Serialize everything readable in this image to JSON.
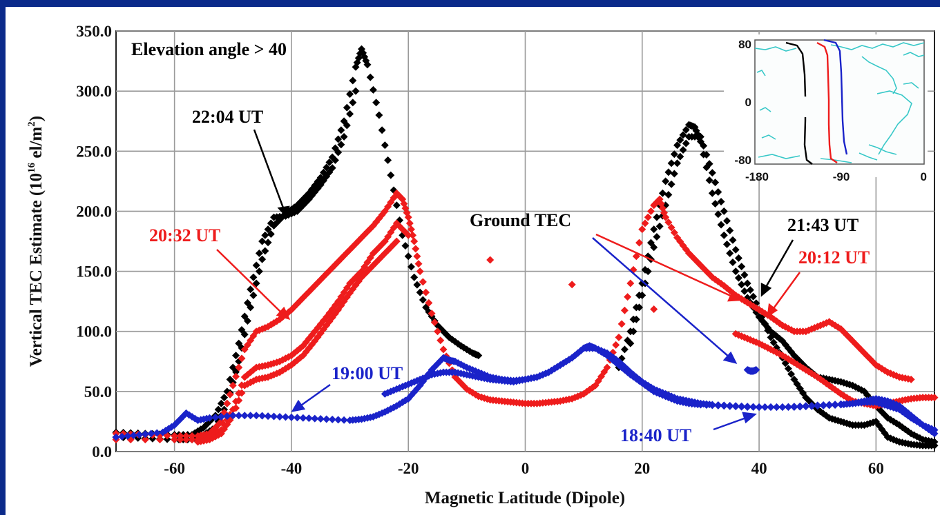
{
  "chart_data": {
    "type": "scatter",
    "xlabel": "Magnetic Latitude (Dipole)",
    "ylabel": "Vertical TEC Estimate (10",
    "ylabel_sup": "16",
    "ylabel_unit": " el/m",
    "ylabel_sup2": "2",
    "ylabel_close": ")",
    "xlim": [
      -70,
      70
    ],
    "ylim": [
      0,
      350
    ],
    "xticks": [
      -60,
      -40,
      -20,
      0,
      20,
      40,
      60
    ],
    "xtick_labels": [
      "-60",
      "-40",
      "-20",
      "0",
      "20",
      "40",
      "60"
    ],
    "yticks": [
      0,
      50,
      100,
      150,
      200,
      250,
      300,
      350
    ],
    "ytick_labels": [
      "0.0",
      "50.0",
      "100.0",
      "150.0",
      "200.0",
      "250.0",
      "300.0",
      "350.0"
    ],
    "grid": true,
    "colors": {
      "black": "#000000",
      "red": "#ee1c1c",
      "blue": "#1a23c9"
    },
    "annotations": [
      {
        "text": "Elevation angle > 40",
        "color": "#000000"
      },
      {
        "text": "22:04 UT",
        "color": "#000000"
      },
      {
        "text": "20:32 UT",
        "color": "#ee1c1c"
      },
      {
        "text": "19:00 UT",
        "color": "#1a23c9"
      },
      {
        "text": "Ground TEC",
        "color": "#000000"
      },
      {
        "text": "21:43 UT",
        "color": "#000000"
      },
      {
        "text": "20:12 UT",
        "color": "#ee1c1c"
      },
      {
        "text": "18:40 UT",
        "color": "#1a23c9"
      }
    ],
    "series": [
      {
        "color": "#000000",
        "x": [
          -70,
          -65,
          -60,
          -57,
          -55,
          -53,
          -51,
          -49,
          -47,
          -45,
          -43,
          -41,
          -39,
          -37,
          -35,
          -33,
          -31,
          -29,
          -28,
          -27,
          -25,
          -23,
          -21,
          -19,
          -17,
          -15,
          -13,
          -11,
          -9,
          -8
        ],
        "y": [
          12,
          11,
          10,
          10,
          14,
          20,
          40,
          75,
          120,
          160,
          188,
          198,
          205,
          215,
          228,
          245,
          275,
          320,
          335,
          322,
          280,
          230,
          180,
          145,
          120,
          105,
          95,
          88,
          82,
          80
        ]
      },
      {
        "color": "#000000",
        "x": [
          -70,
          -65,
          -60,
          -57,
          -55,
          -53,
          -51,
          -49,
          -47,
          -45,
          -43,
          -41,
          -39,
          -37,
          -35,
          -33,
          -31,
          -29
        ],
        "y": [
          16,
          15,
          14,
          14,
          20,
          30,
          50,
          90,
          135,
          175,
          195,
          196,
          200,
          210,
          222,
          236,
          262,
          300
        ]
      },
      {
        "color": "#000000",
        "x": [
          16,
          18,
          20,
          22,
          24,
          26,
          28,
          29,
          30,
          32,
          34,
          36,
          38,
          40,
          42,
          44,
          46,
          48,
          50,
          52,
          54,
          56,
          58,
          60,
          62,
          64,
          66,
          68,
          70
        ],
        "y": [
          70,
          100,
          140,
          185,
          225,
          255,
          272,
          270,
          258,
          215,
          180,
          150,
          128,
          112,
          100,
          92,
          80,
          70,
          62,
          60,
          58,
          55,
          50,
          38,
          28,
          22,
          15,
          10,
          8
        ]
      },
      {
        "color": "#000000",
        "x": [
          18,
          20,
          22,
          24,
          26,
          28,
          30,
          32,
          34,
          36,
          38,
          40,
          42,
          44,
          46,
          48,
          50,
          52,
          54,
          56,
          58,
          60,
          62,
          64,
          66,
          68,
          70
        ],
        "y": [
          90,
          130,
          170,
          205,
          240,
          262,
          262,
          232,
          200,
          168,
          140,
          118,
          95,
          78,
          60,
          45,
          35,
          28,
          25,
          22,
          22,
          25,
          12,
          8,
          6,
          5,
          5
        ]
      },
      {
        "color": "#ee1c1c",
        "x": [
          -70,
          -65,
          -60,
          -56,
          -54,
          -52,
          -50,
          -48,
          -46,
          -44,
          -42,
          -40,
          -38,
          -36,
          -34,
          -32,
          -30,
          -28,
          -26,
          -24,
          -22,
          -21,
          -20,
          -19,
          -18,
          -16,
          -14,
          -12,
          -10,
          -8,
          -6,
          -4,
          -2,
          0,
          2,
          4,
          6,
          8,
          10,
          12,
          14,
          16,
          18,
          20,
          22,
          23,
          24,
          26,
          28,
          30,
          32,
          34,
          36,
          38,
          40,
          42,
          44,
          46,
          48,
          50,
          52,
          54,
          56,
          58,
          60,
          62,
          64,
          66
        ],
        "y": [
          15,
          14,
          13,
          13,
          15,
          25,
          55,
          85,
          100,
          104,
          110,
          118,
          128,
          138,
          148,
          158,
          168,
          178,
          188,
          200,
          215,
          210,
          195,
          175,
          150,
          115,
          85,
          62,
          52,
          46,
          43,
          42,
          41,
          40,
          40,
          41,
          42,
          44,
          48,
          55,
          70,
          95,
          140,
          185,
          205,
          210,
          195,
          178,
          165,
          155,
          145,
          138,
          130,
          124,
          118,
          112,
          105,
          100,
          100,
          104,
          108,
          102,
          92,
          82,
          72,
          66,
          62,
          60
        ]
      },
      {
        "color": "#ee1c1c",
        "x": [
          -70,
          -60,
          -56,
          -54,
          -52,
          -50,
          -48,
          -46,
          -44,
          -42,
          -40,
          -38,
          -36,
          -34,
          -32,
          -30,
          -28,
          -26,
          -24,
          -22,
          -20,
          36,
          38,
          40,
          42,
          44,
          46,
          48,
          50,
          52,
          54,
          56,
          58,
          60,
          62,
          64,
          66,
          68,
          70
        ],
        "y": [
          10,
          10,
          10,
          12,
          18,
          35,
          62,
          70,
          72,
          75,
          80,
          88,
          100,
          112,
          125,
          140,
          150,
          165,
          175,
          190,
          180,
          98,
          94,
          90,
          85,
          80,
          74,
          68,
          62,
          55,
          48,
          42,
          40,
          38,
          40,
          42,
          44,
          45,
          45
        ]
      },
      {
        "color": "#ee1c1c",
        "x": [
          -56,
          -54,
          -52,
          -50,
          -48,
          -46,
          -44,
          -42,
          -40,
          -38,
          -36,
          -34,
          -32,
          -30,
          -28,
          -26,
          -24,
          -22
        ],
        "y": [
          8,
          10,
          15,
          30,
          55,
          60,
          62,
          66,
          72,
          80,
          92,
          105,
          118,
          132,
          145,
          155,
          165,
          175
        ]
      },
      {
        "color": "#1a23c9",
        "x": [
          -70,
          -66,
          -62,
          -60,
          -58,
          -56,
          -54,
          -50,
          -46,
          -42,
          -38,
          -34,
          -30,
          -28,
          -26,
          -24,
          -22,
          -20,
          -18,
          -16,
          -14,
          -13,
          -12,
          -10,
          -8,
          -6,
          -4,
          -2,
          0,
          2,
          4,
          6,
          8,
          10,
          11,
          12,
          14,
          16,
          18,
          20,
          22,
          24,
          26,
          28,
          30,
          34,
          38,
          42,
          46,
          50,
          54,
          56,
          58,
          60,
          62,
          64,
          66,
          68,
          70
        ],
        "y": [
          12,
          14,
          16,
          22,
          32,
          26,
          28,
          30,
          30,
          29,
          28,
          27,
          26,
          27,
          29,
          33,
          38,
          44,
          55,
          68,
          78,
          76,
          75,
          70,
          66,
          62,
          60,
          59,
          60,
          62,
          66,
          72,
          78,
          86,
          88,
          86,
          80,
          72,
          64,
          57,
          50,
          46,
          42,
          40,
          39,
          38,
          37,
          37,
          37,
          38,
          39,
          40,
          41,
          41,
          38,
          35,
          28,
          22,
          15
        ]
      },
      {
        "color": "#1a23c9",
        "x": [
          -24,
          -22,
          -20,
          -18,
          -16,
          -14,
          -12,
          -10,
          -8,
          -6,
          -4,
          -2,
          0,
          2,
          4,
          6,
          8,
          10,
          12,
          14,
          16,
          18,
          20,
          22,
          24,
          26,
          28,
          30,
          32,
          36,
          40,
          44,
          48,
          52,
          56,
          58,
          60,
          62,
          64,
          66,
          68,
          70
        ],
        "y": [
          48,
          52,
          56,
          60,
          64,
          66,
          66,
          64,
          62,
          60,
          59,
          58,
          60,
          62,
          66,
          72,
          78,
          86,
          86,
          82,
          75,
          66,
          58,
          52,
          48,
          44,
          42,
          40,
          39,
          38,
          37,
          37,
          38,
          39,
          40,
          42,
          44,
          42,
          38,
          30,
          22,
          18
        ]
      },
      {
        "color": "#1a23c9",
        "x": [
          38,
          38.5,
          39,
          39.5
        ],
        "y": [
          68,
          67,
          67,
          68
        ]
      }
    ]
  },
  "inset": {
    "yticks": [
      "80",
      "0",
      "-80"
    ],
    "xticks": [
      "-180",
      "-90",
      "0"
    ],
    "tracks": [
      {
        "color": "#000000"
      },
      {
        "color": "#ee1c1c"
      },
      {
        "color": "#1a23c9"
      }
    ]
  }
}
